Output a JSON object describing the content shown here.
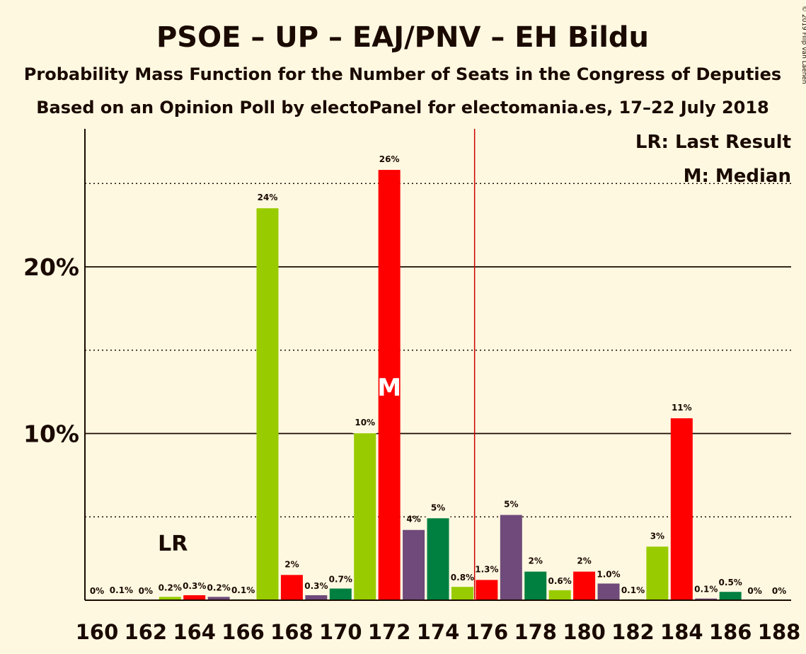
{
  "title": "PSOE – UP – EAJ/PNV – EH Bildu",
  "subtitle1": "Probability Mass Function for the Number of Seats in the Congress of Deputies",
  "subtitle2": "Based on an Opinion Poll by electoPanel for electomania.es, 17–22 July 2018",
  "copyright": "© 2019 Filip van Laenen",
  "legend": {
    "lr": "LR: Last Result",
    "median": "M: Median"
  },
  "markers": {
    "lr_label": "LR",
    "median_label": "M"
  },
  "colors": {
    "background": "#FFF8E1",
    "psoe": "#FF0000",
    "up": "#714BD0",
    "up_actual": "#6F4A7A",
    "eaj_pnv": "#008040",
    "eh_bildu": "#99CC00",
    "majority_line": "#CC0000",
    "text": "#1A0A00"
  },
  "chart_data": {
    "type": "bar",
    "title": "PSOE – UP – EAJ/PNV – EH Bildu",
    "xlabel": "",
    "ylabel": "",
    "ylim": [
      0,
      28
    ],
    "yticks_labeled": [
      {
        "value": 10,
        "label": "10%"
      },
      {
        "value": 20,
        "label": "20%"
      }
    ],
    "ygrid_dotted": [
      5,
      15,
      25
    ],
    "ygrid_solid": [
      10,
      20
    ],
    "xticks": [
      160,
      162,
      164,
      166,
      168,
      170,
      172,
      174,
      176,
      178,
      180,
      182,
      184,
      186,
      188
    ],
    "last_result": 163,
    "median": 172,
    "majority": 176,
    "bars": [
      {
        "seats": 160,
        "value": 0,
        "label": "0%",
        "color": "none"
      },
      {
        "seats": 161,
        "value": 0.05,
        "label": "0.1%",
        "color": "#6F4A7A"
      },
      {
        "seats": 162,
        "value": 0,
        "label": "0%",
        "color": "none"
      },
      {
        "seats": 163,
        "value": 0.2,
        "label": "0.2%",
        "color": "#99CC00"
      },
      {
        "seats": 164,
        "value": 0.3,
        "label": "0.3%",
        "color": "#FF0000"
      },
      {
        "seats": 165,
        "value": 0.2,
        "label": "0.2%",
        "color": "#6F4A7A"
      },
      {
        "seats": 166,
        "value": 0.05,
        "label": "0.1%",
        "color": "#008040"
      },
      {
        "seats": 167,
        "value": 23.6,
        "label": "24%",
        "color": "#99CC00"
      },
      {
        "seats": 168,
        "value": 1.6,
        "label": "2%",
        "color": "#FF0000"
      },
      {
        "seats": 169,
        "value": 0.3,
        "label": "0.3%",
        "color": "#6F4A7A"
      },
      {
        "seats": 170,
        "value": 0.7,
        "label": "0.7%",
        "color": "#008040"
      },
      {
        "seats": 171,
        "value": 10.1,
        "label": "10%",
        "color": "#99CC00"
      },
      {
        "seats": 172,
        "value": 25.9,
        "label": "26%",
        "color": "#FF0000"
      },
      {
        "seats": 173,
        "value": 4.3,
        "label": "4%",
        "color": "#6F4A7A"
      },
      {
        "seats": 174,
        "value": 5.0,
        "label": "5%",
        "color": "#008040"
      },
      {
        "seats": 175,
        "value": 0.8,
        "label": "0.8%",
        "color": "#99CC00"
      },
      {
        "seats": 176,
        "value": 1.3,
        "label": "1.3%",
        "color": "#FF0000"
      },
      {
        "seats": 177,
        "value": 5.2,
        "label": "5%",
        "color": "#6F4A7A"
      },
      {
        "seats": 178,
        "value": 1.8,
        "label": "2%",
        "color": "#008040"
      },
      {
        "seats": 179,
        "value": 0.6,
        "label": "0.6%",
        "color": "#99CC00"
      },
      {
        "seats": 180,
        "value": 1.8,
        "label": "2%",
        "color": "#FF0000"
      },
      {
        "seats": 181,
        "value": 1.0,
        "label": "1.0%",
        "color": "#6F4A7A"
      },
      {
        "seats": 182,
        "value": 0.05,
        "label": "0.1%",
        "color": "#008040"
      },
      {
        "seats": 183,
        "value": 3.3,
        "label": "3%",
        "color": "#99CC00"
      },
      {
        "seats": 184,
        "value": 11.0,
        "label": "11%",
        "color": "#FF0000"
      },
      {
        "seats": 185,
        "value": 0.1,
        "label": "0.1%",
        "color": "#6F4A7A"
      },
      {
        "seats": 186,
        "value": 0.5,
        "label": "0.5%",
        "color": "#008040"
      },
      {
        "seats": 187,
        "value": 0,
        "label": "0%",
        "color": "none"
      },
      {
        "seats": 188,
        "value": 0,
        "label": "0%",
        "color": "none"
      }
    ]
  }
}
